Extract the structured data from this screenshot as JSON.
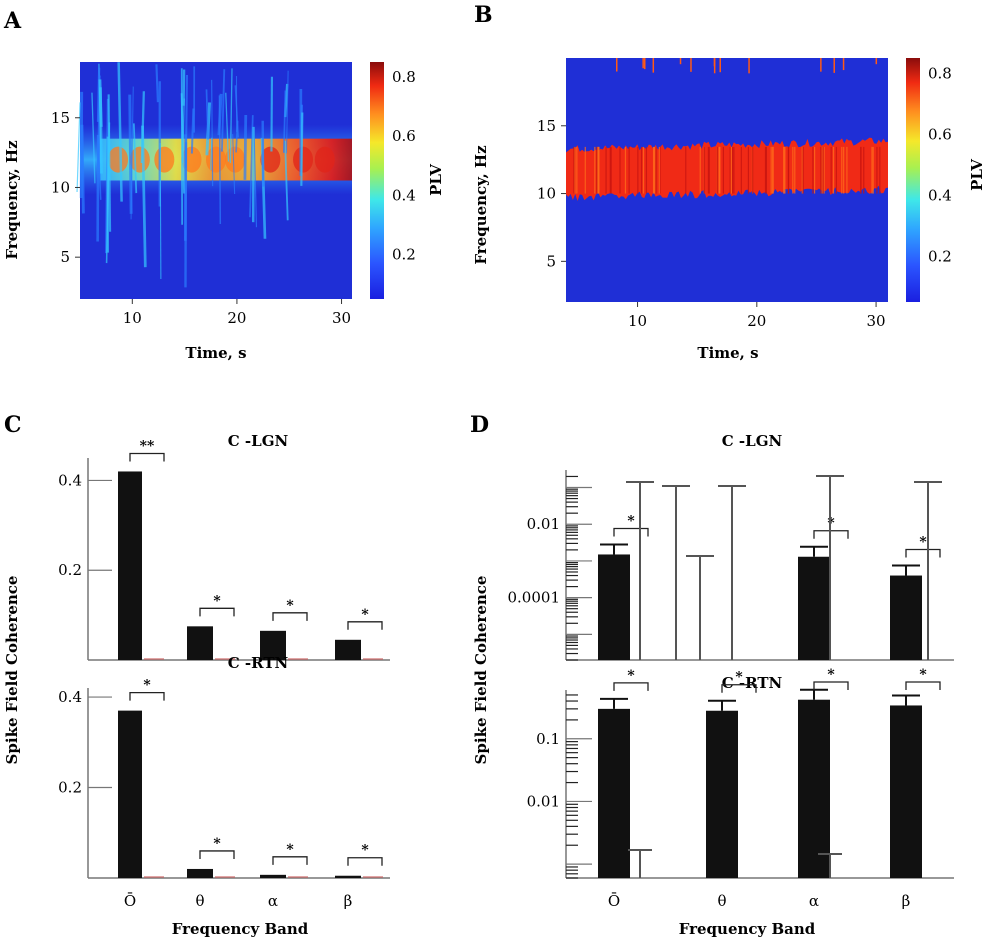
{
  "panels": {
    "a": "A",
    "b": "B",
    "c": "C",
    "d": "D"
  },
  "colors": {
    "bar": "#111111",
    "axis": "#777777",
    "field": "#1f2fd6"
  },
  "chart_data": [
    {
      "type": "heatmap",
      "panel": "A",
      "xlabel": "Time, s",
      "ylabel": "Frequency, Hz",
      "colorbar_label": "PLV",
      "xlim": [
        5,
        31
      ],
      "ylim": [
        2,
        19
      ],
      "xticks": [
        "10",
        "20",
        "30"
      ],
      "yticks": [
        "5",
        "10",
        "15"
      ],
      "colorbar_ticks": [
        "0.2",
        "0.4",
        "0.6",
        "0.8"
      ],
      "colorbar_range": [
        0.05,
        0.85
      ],
      "band": {
        "low_hz": 10.5,
        "high_hz": 13.5,
        "peak_plv": 0.8
      }
    },
    {
      "type": "heatmap",
      "panel": "B",
      "xlabel": "Time, s",
      "ylabel": "Frequency, Hz",
      "colorbar_label": "PLV",
      "xlim": [
        4,
        31
      ],
      "ylim": [
        2,
        20
      ],
      "xticks": [
        "10",
        "20",
        "30"
      ],
      "yticks": [
        "5",
        "10",
        "15"
      ],
      "colorbar_ticks": [
        "0.2",
        "0.4",
        "0.6",
        "0.8"
      ],
      "colorbar_range": [
        0.05,
        0.85
      ],
      "band": {
        "low_hz": 10,
        "high_hz": 13,
        "peak_plv": 0.75
      }
    },
    {
      "type": "bar",
      "panel": "C",
      "subplots": [
        {
          "title": "C -LGN",
          "scale": "linear",
          "ylim": [
            0,
            0.45
          ],
          "yticks": [
            "0.2",
            "0.4"
          ],
          "categories": [
            "Ō",
            "θ",
            "α",
            "β"
          ],
          "values": [
            0.42,
            0.075,
            0.065,
            0.045
          ],
          "markers": [
            "**",
            "*",
            "*",
            "*"
          ]
        },
        {
          "title": "C -RTN",
          "scale": "linear",
          "ylim": [
            0,
            0.42
          ],
          "yticks": [
            "0.2",
            "0.4"
          ],
          "categories": [
            "Ō",
            "θ",
            "α",
            "β"
          ],
          "values": [
            0.37,
            0.02,
            0.007,
            0.005
          ],
          "markers": [
            "*",
            "*",
            "*",
            "*"
          ]
        }
      ],
      "xlabel": "Frequency Band",
      "ylabel": "Spike Field Coherence"
    },
    {
      "type": "bar",
      "panel": "D",
      "subplots": [
        {
          "title": "C -LGN",
          "scale": "log",
          "ylim": [
            2e-06,
            0.3
          ],
          "yticks": [
            "0.01",
            "0.0001"
          ],
          "categories": [
            "Ō",
            "θ",
            "α",
            "β"
          ],
          "values": [
            0.0015,
            2e-06,
            0.0013,
            0.0004
          ],
          "markers": [
            "*",
            "",
            "*",
            "*"
          ]
        },
        {
          "title": "C -RTN",
          "scale": "log",
          "ylim": [
            0.0006,
            0.6
          ],
          "yticks": [
            "0.1",
            "0.01"
          ],
          "categories": [
            "Ō",
            "θ",
            "α",
            "β"
          ],
          "values": [
            0.3,
            0.28,
            0.42,
            0.34
          ],
          "markers": [
            "*",
            "*",
            "*",
            "*"
          ]
        }
      ],
      "xlabel": "Frequency Band",
      "ylabel": "Spike Field Coherence"
    }
  ]
}
